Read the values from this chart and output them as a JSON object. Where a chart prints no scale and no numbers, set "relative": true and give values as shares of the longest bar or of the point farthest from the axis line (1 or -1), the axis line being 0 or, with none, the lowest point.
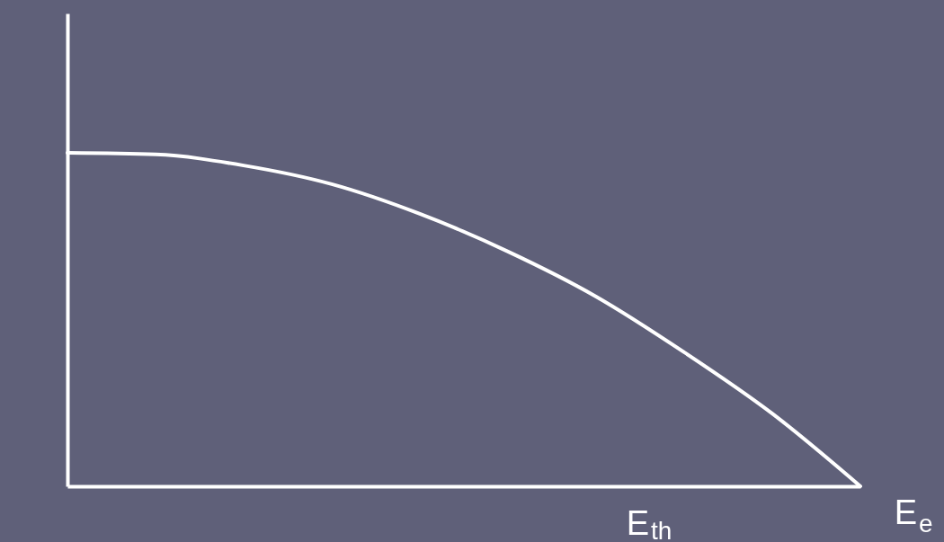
{
  "chart_data": {
    "type": "line",
    "relative": true,
    "xlabel": "E$_{e}$",
    "annotations": [
      "E$_{th}$"
    ],
    "categories": [
      null,
      null,
      null,
      null,
      null,
      null,
      null,
      null,
      null,
      null
    ],
    "series": [
      {
        "color": "#ffffff",
        "values": [
          1,
          0.995,
          0.962,
          0.906,
          0.817,
          0.704,
          0.569,
          0.402,
          0.218,
          0
        ]
      }
    ],
    "tick_labels": false,
    "grid": false,
    "marker": "none",
    "line_style": "solid"
  }
}
